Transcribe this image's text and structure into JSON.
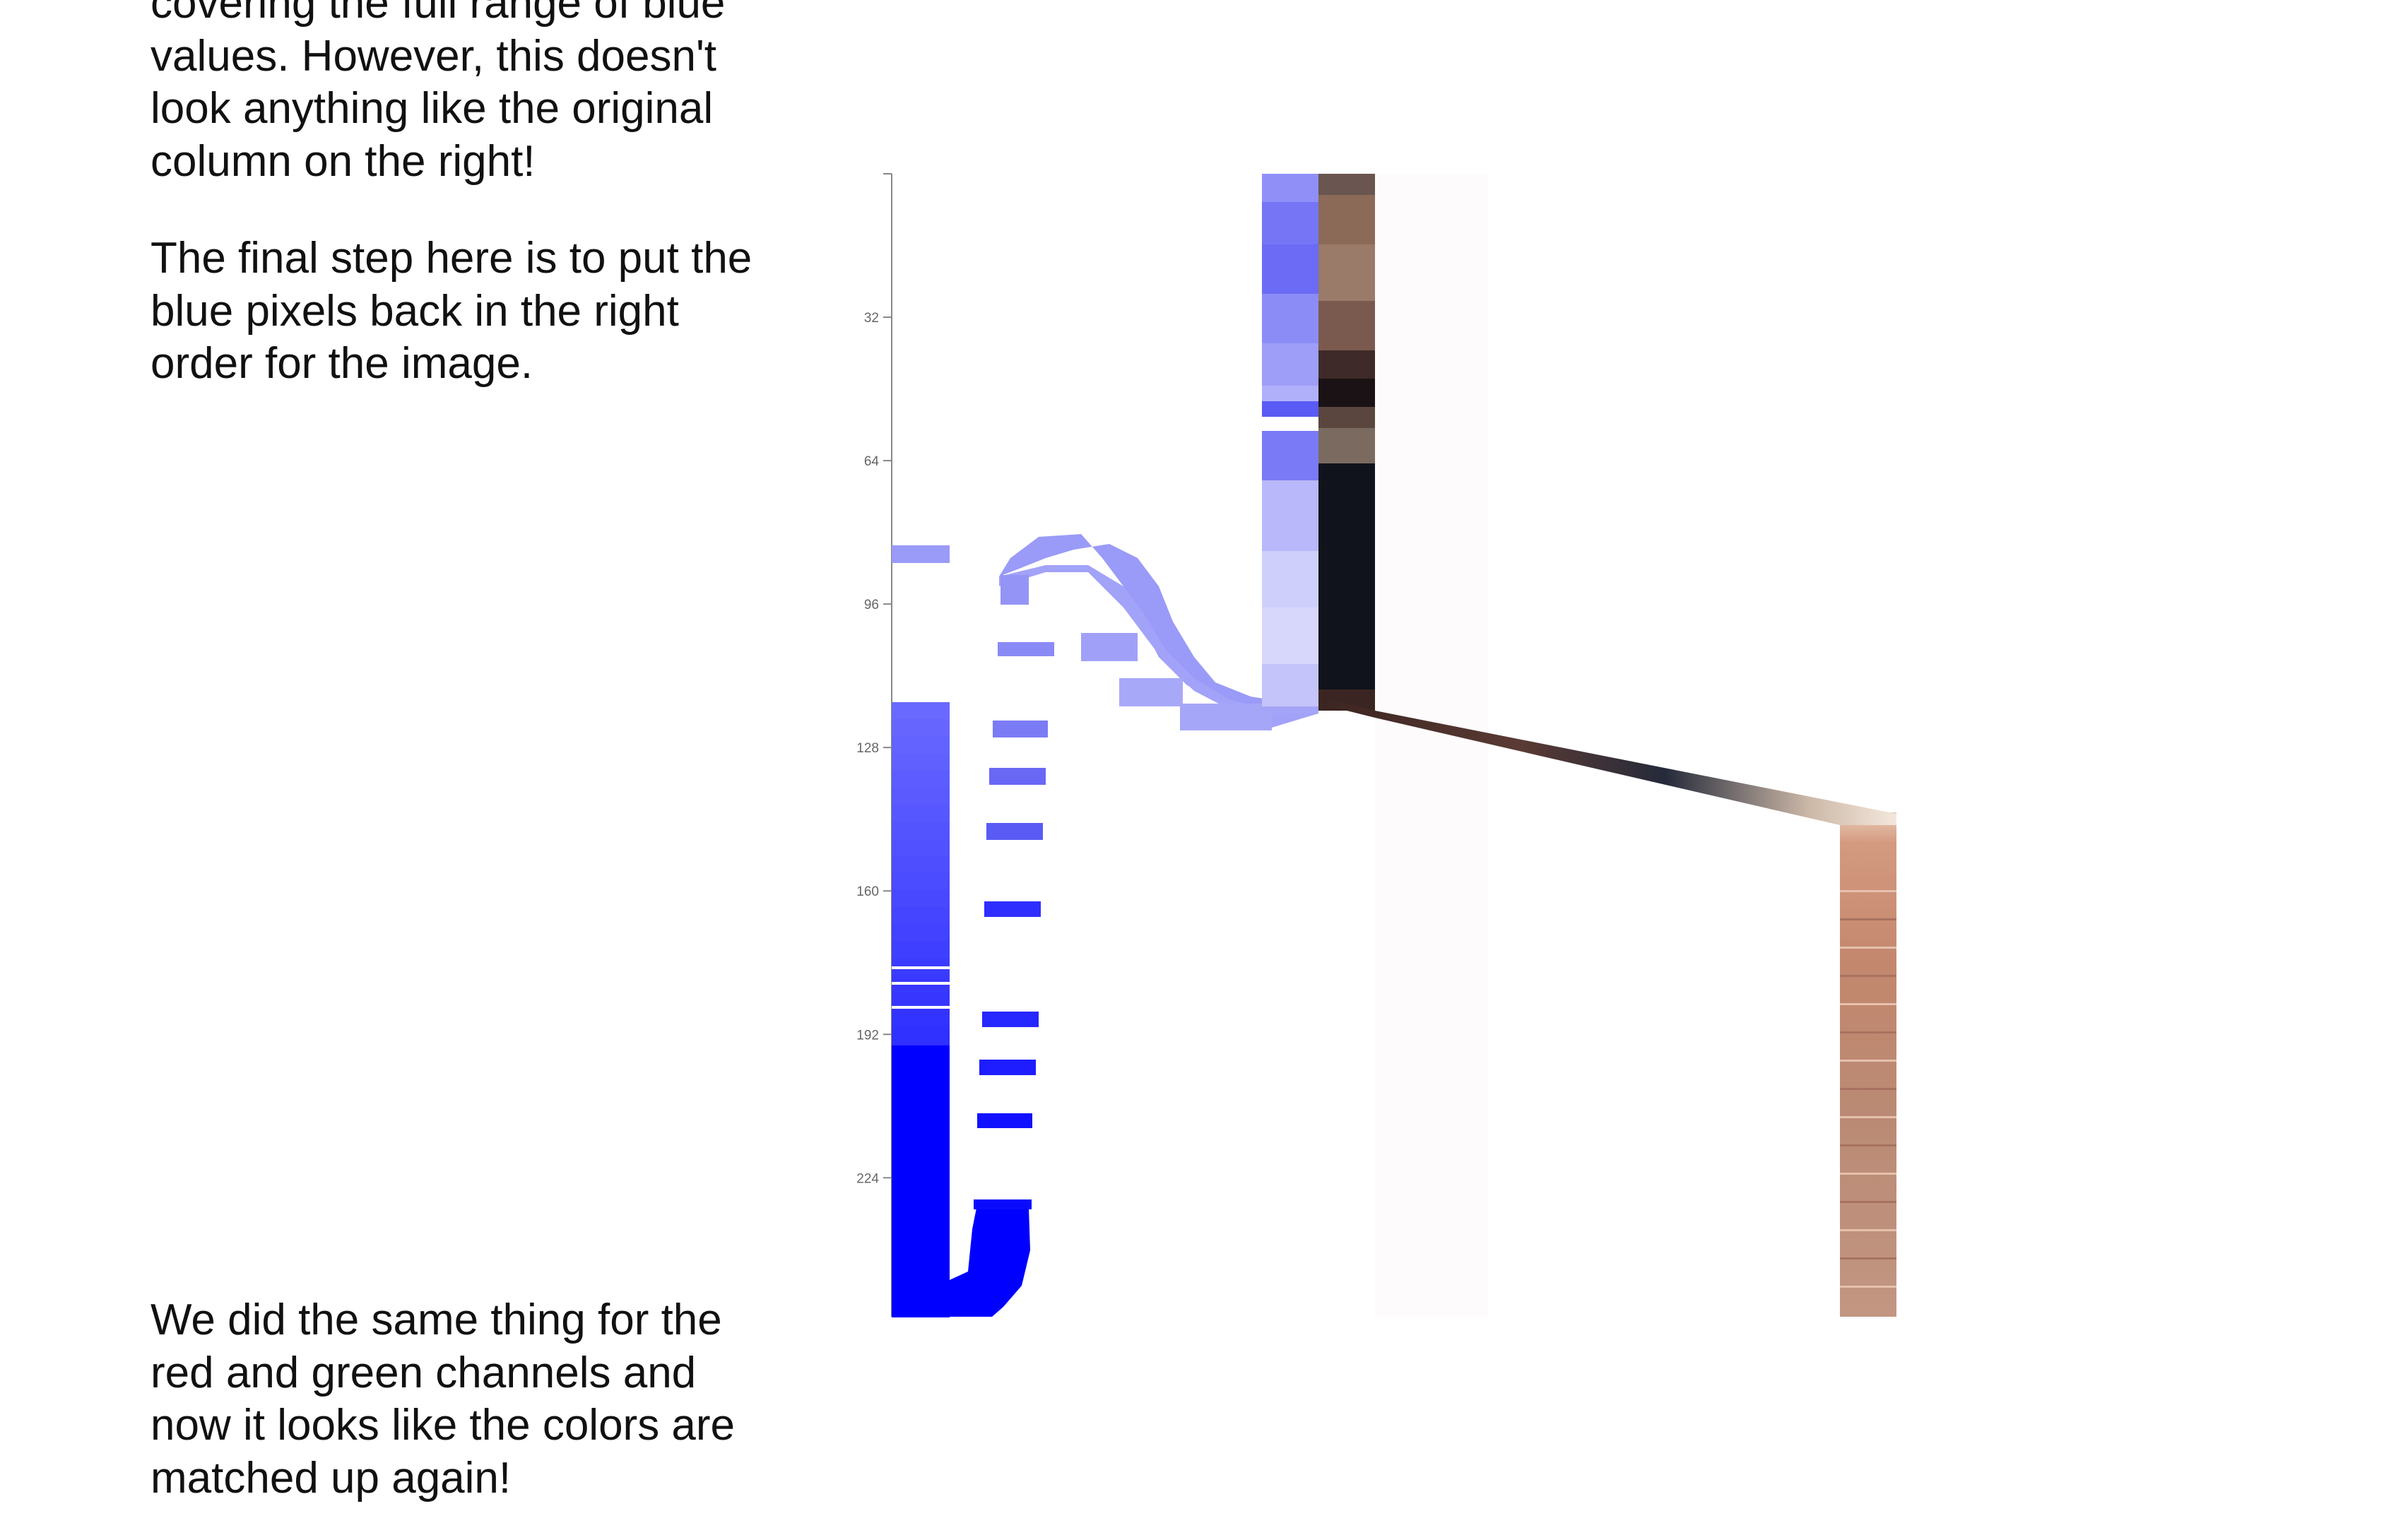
{
  "text": {
    "intro": "covering the full range of blue values. However, this doesn't look anything like the original column on the right!",
    "final_step": "The final step here is to put the blue pixels back in the right order for the image.",
    "channels": "We did the same thing for the red and green channels and now it looks like the colors are matched up again!"
  },
  "axis": {
    "domain": [
      0,
      255
    ],
    "ticks": [
      32,
      64,
      96,
      128,
      160,
      192,
      224
    ]
  },
  "colors": {
    "blue_pure": "#0000ff",
    "blue_light": "#9a9af8",
    "column_dark": "#11131c",
    "column_brown": "#8c6a58",
    "column_skin": "#c7907a",
    "axis_line": "#888888"
  }
}
